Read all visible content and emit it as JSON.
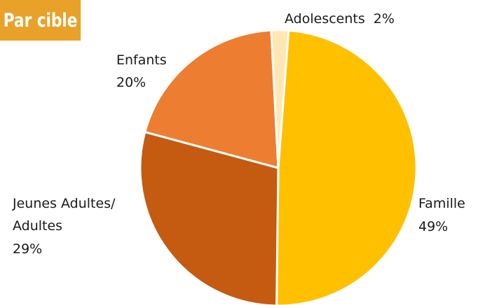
{
  "title": "Par cible",
  "chart_data": {
    "type": "pie",
    "slices": [
      {
        "name": "Famille",
        "value": 49,
        "value_label": "49%",
        "color": "#FFC000"
      },
      {
        "name": "Jeunes Adultes/",
        "name_line2": "Adultes",
        "value": 29,
        "value_label": "29%",
        "color": "#C55A11"
      },
      {
        "name": "Enfants",
        "value": 20,
        "value_label": "20%",
        "color": "#ED7D31"
      },
      {
        "name": "Adolescents",
        "value": 2,
        "value_label": "2%",
        "color": "#FFE6B3"
      }
    ]
  }
}
